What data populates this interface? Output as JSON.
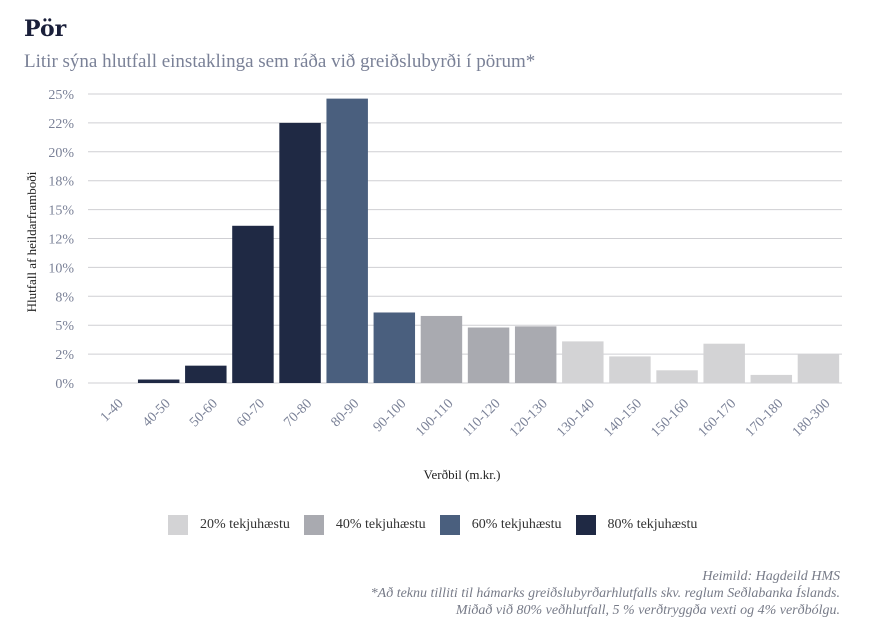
{
  "title": "Pör",
  "subtitle": "Litir sýna hlutfall einstaklinga sem ráða við greiðslubyrði í pörum*",
  "colors": {
    "tier20": "#d3d3d5",
    "tier40": "#a9aab0",
    "tier60": "#4a5f7e",
    "tier80": "#1f2944",
    "grid": "#cfcfd3",
    "axis_text": "#7a8197"
  },
  "legend": [
    {
      "label": "20% tekjuhæstu",
      "color": "#d3d3d5"
    },
    {
      "label": "40% tekjuhæstu",
      "color": "#a9aab0"
    },
    {
      "label": "60% tekjuhæstu",
      "color": "#4a5f7e"
    },
    {
      "label": "80% tekjuhæstu",
      "color": "#1f2944"
    }
  ],
  "footer": {
    "source": "Heimild: Hagdeild HMS",
    "note1": "*Að teknu tilliti til hámarks greiðslubyrðarhlutfalls skv. reglum Seðlabanka Íslands.",
    "note2": "Miðað við 80% veðhlutfall, 5 % verðtryggða vexti og 4% verðbólgu."
  },
  "chart_data": {
    "type": "bar",
    "xlabel": "Verðbil (m.kr.)",
    "ylabel": "Hlutfall af heildarframboði",
    "ylim": [
      0,
      25
    ],
    "yticks": [
      0,
      2.5,
      5,
      7.5,
      10,
      12.5,
      15,
      17.5,
      20,
      22.5,
      25
    ],
    "ytick_labels": [
      "0%",
      "2%",
      "5%",
      "8%",
      "10%",
      "12%",
      "15%",
      "18%",
      "20%",
      "22%",
      "25%"
    ],
    "categories": [
      "1-40",
      "40-50",
      "50-60",
      "60-70",
      "70-80",
      "80-90",
      "90-100",
      "100-110",
      "110-120",
      "120-130",
      "130-140",
      "140-150",
      "150-160",
      "160-170",
      "170-180",
      "180-300"
    ],
    "values": [
      0,
      0.3,
      1.5,
      13.6,
      22.5,
      24.6,
      6.1,
      5.8,
      4.8,
      4.9,
      3.6,
      2.3,
      1.1,
      3.4,
      0.7,
      2.5
    ],
    "tiers": [
      "80% tekjuhæstu",
      "80% tekjuhæstu",
      "80% tekjuhæstu",
      "80% tekjuhæstu",
      "80% tekjuhæstu",
      "60% tekjuhæstu",
      "60% tekjuhæstu",
      "40% tekjuhæstu",
      "40% tekjuhæstu",
      "40% tekjuhæstu",
      "20% tekjuhæstu",
      "20% tekjuhæstu",
      "20% tekjuhæstu",
      "20% tekjuhæstu",
      "20% tekjuhæstu",
      "20% tekjuhæstu"
    ],
    "grid": true,
    "legend_position": "bottom"
  }
}
